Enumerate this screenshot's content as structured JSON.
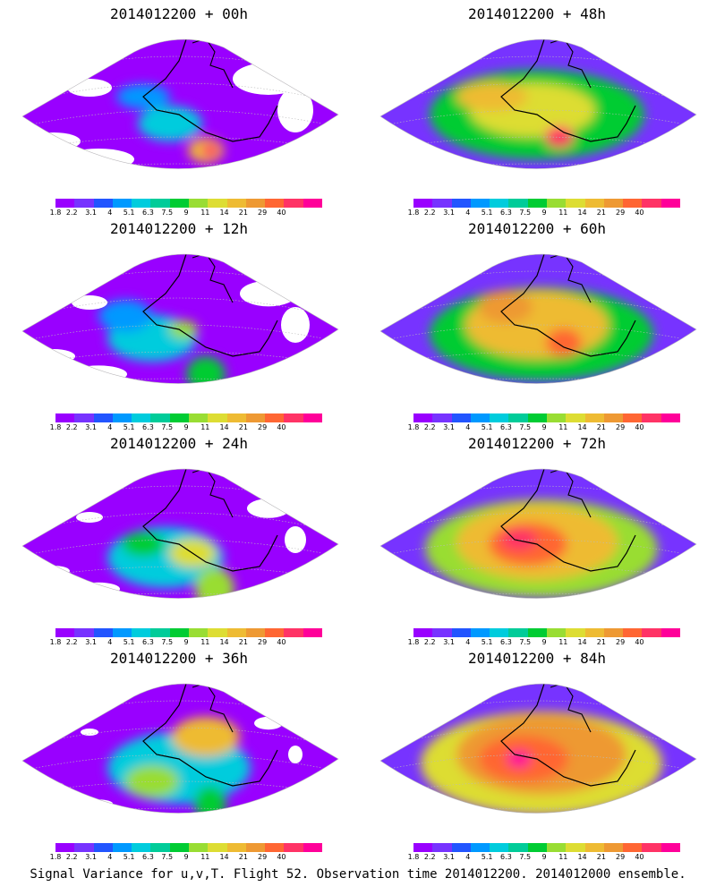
{
  "colorbar": {
    "colors": [
      "#9900ff",
      "#7733ff",
      "#2255ff",
      "#0099ff",
      "#00ccdd",
      "#00cc99",
      "#00cc33",
      "#99dd33",
      "#dddd33",
      "#eebb33",
      "#ee9933",
      "#ff6633",
      "#ff3366",
      "#ff0099"
    ],
    "tick_labels": [
      "1.8",
      "2.2",
      "3.1",
      "4",
      "5.1",
      "6.3",
      "7.5",
      "9",
      "11",
      "14",
      "21",
      "29",
      "40"
    ]
  },
  "panels": [
    {
      "id": "p00",
      "title": "2014012200 + 00h",
      "level": 0
    },
    {
      "id": "p12",
      "title": "2014012200 + 12h",
      "level": 1
    },
    {
      "id": "p24",
      "title": "2014012200 + 24h",
      "level": 2
    },
    {
      "id": "p36",
      "title": "2014012200 + 36h",
      "level": 3
    },
    {
      "id": "p48",
      "title": "2014012200 + 48h",
      "level": 4
    },
    {
      "id": "p60",
      "title": "2014012200 + 60h",
      "level": 5
    },
    {
      "id": "p72",
      "title": "2014012200 + 72h",
      "level": 6
    },
    {
      "id": "p84",
      "title": "2014012200 + 84h",
      "level": 7
    }
  ],
  "footer": "Signal Variance for u,v,T. Flight 52. Observation time 2014012200. 2014012000 ensemble."
}
